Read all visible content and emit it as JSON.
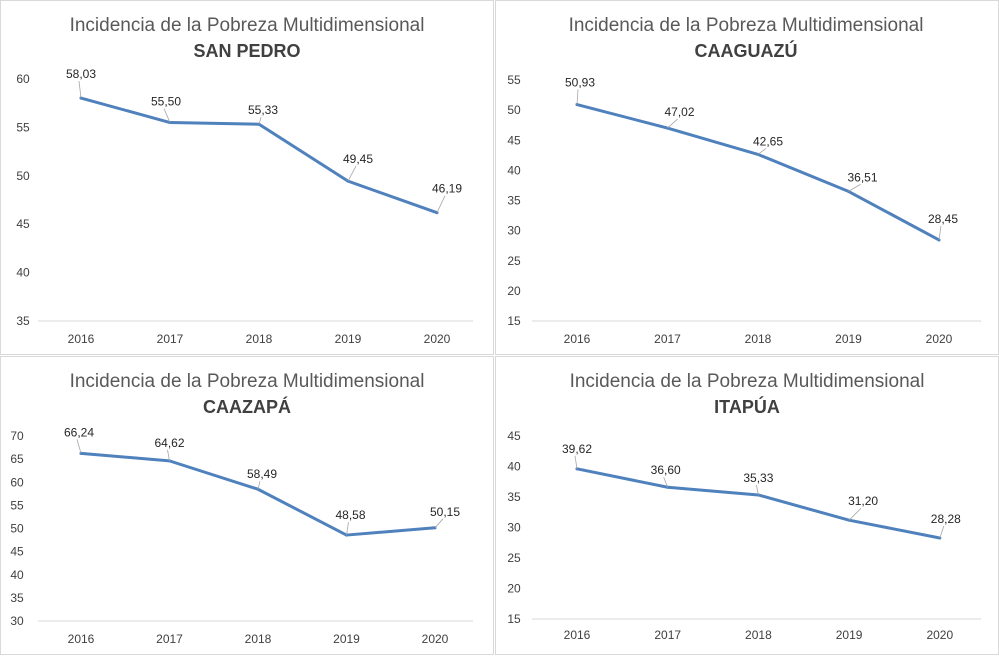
{
  "chart_data": [
    {
      "type": "line",
      "title": "Incidencia de la Pobreza Multidimensional",
      "subtitle": "SAN PEDRO",
      "categories": [
        "2016",
        "2017",
        "2018",
        "2019",
        "2020"
      ],
      "values": [
        58.03,
        55.5,
        55.33,
        49.45,
        46.19
      ],
      "data_labels": [
        "58,03",
        "55,50",
        "55,33",
        "49,45",
        "46,19"
      ],
      "yticks": [
        35,
        40,
        45,
        50,
        55,
        60
      ],
      "ylim": [
        35,
        60
      ],
      "color": "#4f81bd",
      "grid": false
    },
    {
      "type": "line",
      "title": "Incidencia de la Pobreza Multidimensional",
      "subtitle": "CAAGUAZÚ",
      "categories": [
        "2016",
        "2017",
        "2018",
        "2019",
        "2020"
      ],
      "values": [
        50.93,
        47.02,
        42.65,
        36.51,
        28.45
      ],
      "data_labels": [
        "50,93",
        "47,02",
        "42,65",
        "36,51",
        "28,45"
      ],
      "yticks": [
        15,
        20,
        25,
        30,
        35,
        40,
        45,
        50,
        55
      ],
      "ylim": [
        15,
        55
      ],
      "color": "#4f81bd",
      "grid": false
    },
    {
      "type": "line",
      "title": "Incidencia de la Pobreza Multidimensional",
      "subtitle": "CAAZAPÁ",
      "categories": [
        "2016",
        "2017",
        "2018",
        "2019",
        "2020"
      ],
      "values": [
        66.24,
        64.62,
        58.49,
        48.58,
        50.15
      ],
      "data_labels": [
        "66,24",
        "64,62",
        "58,49",
        "48,58",
        "50,15"
      ],
      "yticks": [
        30,
        35,
        40,
        45,
        50,
        55,
        60,
        65,
        70
      ],
      "ylim": [
        30,
        70
      ],
      "color": "#4f81bd",
      "grid": false
    },
    {
      "type": "line",
      "title": "Incidencia de la Pobreza Multidimensional",
      "subtitle": "ITAPÚA",
      "categories": [
        "2016",
        "2017",
        "2018",
        "2019",
        "2020"
      ],
      "values": [
        39.62,
        36.6,
        35.33,
        31.2,
        28.28
      ],
      "data_labels": [
        "39,62",
        "36,60",
        "35,33",
        "31,20",
        "28,28"
      ],
      "yticks": [
        15,
        20,
        25,
        30,
        35,
        40,
        45
      ],
      "ylim": [
        15,
        45
      ],
      "color": "#4f81bd",
      "grid": false
    }
  ]
}
